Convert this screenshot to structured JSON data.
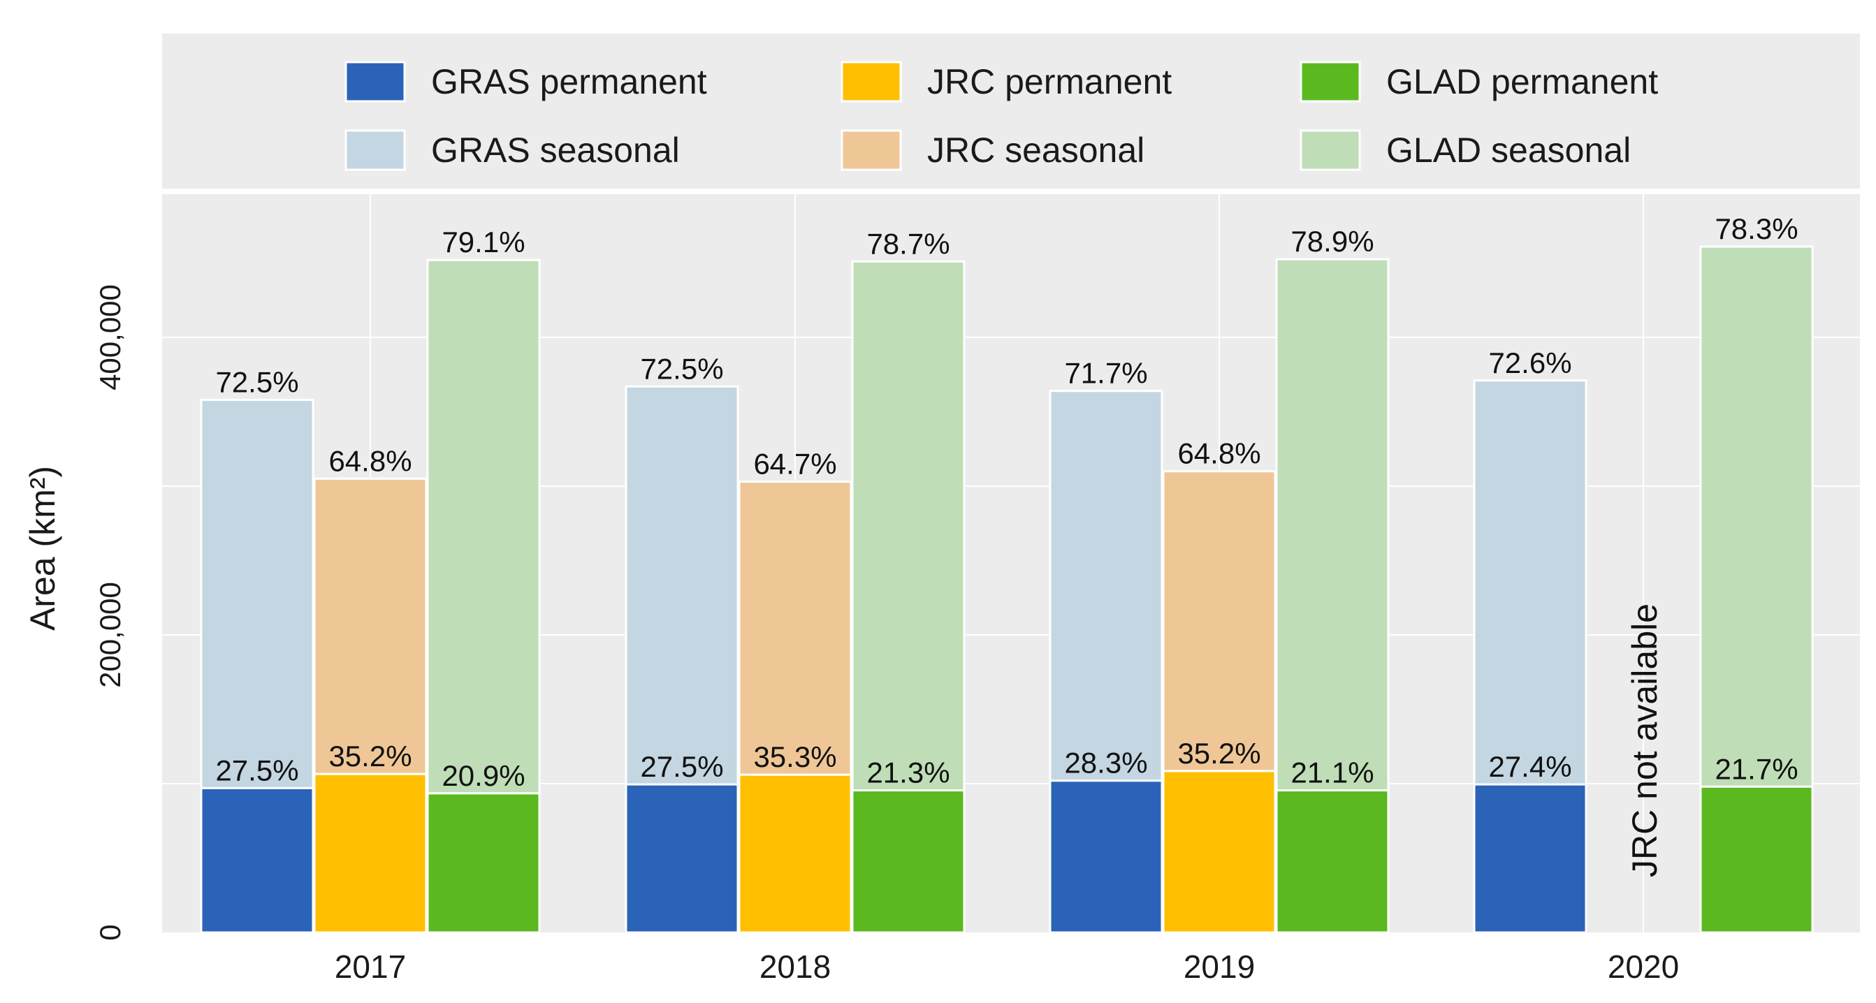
{
  "chart_data": {
    "type": "bar",
    "stacked": true,
    "categories": [
      "2017",
      "2018",
      "2019",
      "2020"
    ],
    "ylabel": "Area (km²)",
    "yticks": [
      0,
      200000,
      400000
    ],
    "ytick_labels": [
      "0",
      "200,000",
      "400,000"
    ],
    "ylim": [
      0,
      500000
    ],
    "grid": true,
    "legend_position": "top",
    "legend": [
      {
        "label": "GRAS permanent",
        "color": "#2b63b8"
      },
      {
        "label": "JRC permanent",
        "color": "#ffbf00"
      },
      {
        "label": "GLAD permanent",
        "color": "#5bb91f"
      },
      {
        "label": "GRAS seasonal",
        "color": "#c3d6e2"
      },
      {
        "label": "JRC seasonal",
        "color": "#efc797"
      },
      {
        "label": "GLAD seasonal",
        "color": "#bfdeb7"
      }
    ],
    "products": [
      {
        "name": "GRAS",
        "permanent_color": "#2b63b8",
        "seasonal_color": "#c3d6e2",
        "permanent": [
          97000,
          99500,
          102000,
          99500
        ],
        "total": [
          358000,
          367000,
          364000,
          371000
        ],
        "permanent_labels": [
          "27.5%",
          "27.5%",
          "28.3%",
          "27.4%"
        ],
        "seasonal_labels": [
          "72.5%",
          "72.5%",
          "71.7%",
          "72.6%"
        ]
      },
      {
        "name": "JRC",
        "permanent_color": "#ffbf00",
        "seasonal_color": "#efc797",
        "permanent": [
          106500,
          106000,
          108500,
          null
        ],
        "total": [
          305000,
          303000,
          310000,
          null
        ],
        "permanent_labels": [
          "35.2%",
          "35.3%",
          "35.2%",
          ""
        ],
        "seasonal_labels": [
          "64.8%",
          "64.7%",
          "64.8%",
          ""
        ],
        "not_available_text": "JRC not available"
      },
      {
        "name": "GLAD",
        "permanent_color": "#5bb91f",
        "seasonal_color": "#bfdeb7",
        "permanent": [
          93500,
          95500,
          95500,
          98000
        ],
        "total": [
          452000,
          451000,
          452500,
          461000
        ],
        "permanent_labels": [
          "20.9%",
          "21.3%",
          "21.1%",
          "21.7%"
        ],
        "seasonal_labels": [
          "79.1%",
          "78.7%",
          "78.9%",
          "78.3%"
        ]
      }
    ]
  }
}
